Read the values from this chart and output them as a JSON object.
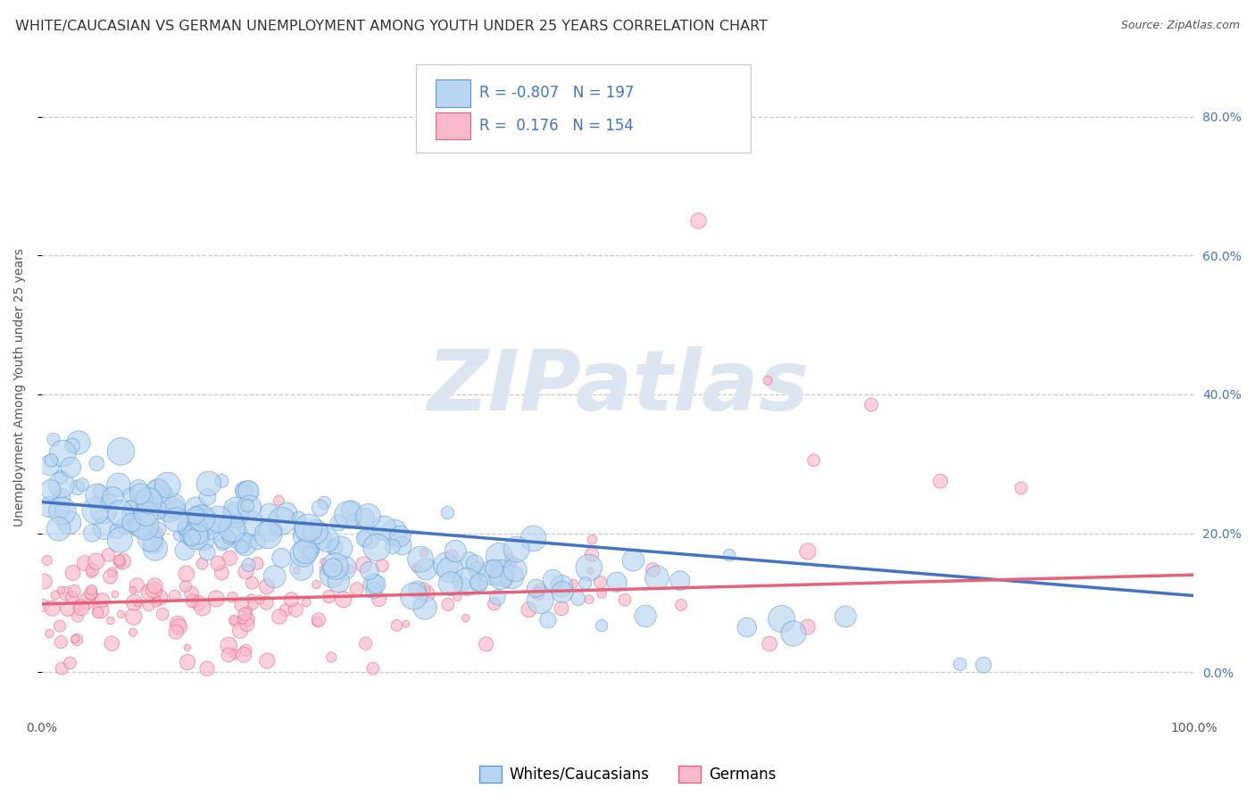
{
  "title": "WHITE/CAUCASIAN VS GERMAN UNEMPLOYMENT AMONG YOUTH UNDER 25 YEARS CORRELATION CHART",
  "source": "Source: ZipAtlas.com",
  "ylabel": "Unemployment Among Youth under 25 years",
  "watermark_line1": "ZIP",
  "watermark_line2": "atlas",
  "watermark": "ZIPatlas",
  "legend_blue_label": "Whites/Caucasians",
  "legend_pink_label": "Germans",
  "R_blue": -0.807,
  "N_blue": 197,
  "R_pink": 0.176,
  "N_pink": 154,
  "blue_face": "#b8d4f0",
  "blue_edge": "#5b9bd5",
  "pink_face": "#f8b8cc",
  "pink_edge": "#e8607a",
  "blue_line": "#4472c4",
  "pink_line": "#e8607a",
  "rn_text_color": "#4472c4",
  "title_color": "#333333",
  "source_color": "#555555",
  "ylabel_color": "#555555",
  "right_tick_color": "#4472c4",
  "left_tick_color": "#555555",
  "grid_color": "#c8c8c8",
  "watermark_color": "#dde5f0",
  "bg_color": "#ffffff",
  "title_fontsize": 11.5,
  "source_fontsize": 9,
  "ylabel_fontsize": 10,
  "tick_fontsize": 10,
  "legend_fontsize": 12,
  "watermark_fontsize": 68,
  "xlim": [
    0.0,
    1.0
  ],
  "ylim": [
    -0.06,
    0.88
  ],
  "blue_intercept": 0.245,
  "blue_slope": -0.135,
  "pink_intercept": 0.098,
  "pink_slope": 0.042,
  "ytick_pos": [
    0.0,
    0.2,
    0.4,
    0.6,
    0.8
  ],
  "ytick_labels": [
    "0.0%",
    "20.0%",
    "40.0%",
    "60.0%",
    "80.0%"
  ],
  "xtick_pos": [
    0.0,
    1.0
  ],
  "xtick_labels": [
    "0.0%",
    "100.0%"
  ]
}
